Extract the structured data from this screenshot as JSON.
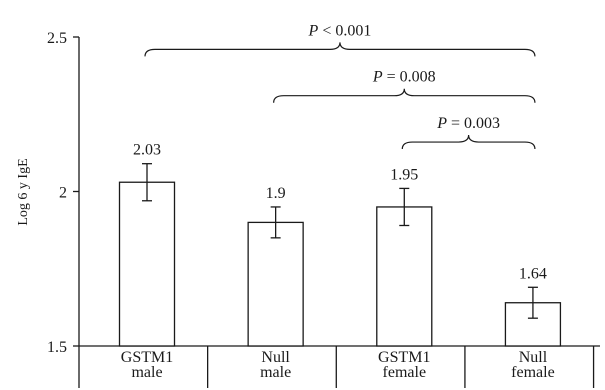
{
  "chart_data": {
    "type": "bar",
    "title": "",
    "xlabel": "",
    "ylabel": "Log 6 y IgE",
    "ylim": [
      1.5,
      2.5
    ],
    "yticks": [
      "1.5",
      "2",
      "2.5"
    ],
    "ytick_values": [
      1.5,
      2.0,
      2.5
    ],
    "categories": [
      [
        "GSTM1",
        "male"
      ],
      [
        "Null",
        "male"
      ],
      [
        "GSTM1",
        "female"
      ],
      [
        "Null",
        "female"
      ]
    ],
    "values": [
      2.03,
      1.9,
      1.95,
      1.64
    ],
    "value_labels": [
      "2.03",
      "1.9",
      "1.95",
      "1.64"
    ],
    "error_low": [
      1.97,
      1.85,
      1.89,
      1.59
    ],
    "error_high": [
      2.09,
      1.95,
      2.01,
      1.69
    ],
    "bar_color": "#ffffff",
    "edge_color": "#1a1a1a",
    "grid": false,
    "comparisons": [
      {
        "from": 0,
        "to": 3,
        "level": 2.46,
        "label": "P < 0.001"
      },
      {
        "from": 1,
        "to": 3,
        "level": 2.31,
        "label": "P = 0.008"
      },
      {
        "from": 2,
        "to": 3,
        "level": 2.16,
        "label": "P = 0.003"
      }
    ]
  }
}
